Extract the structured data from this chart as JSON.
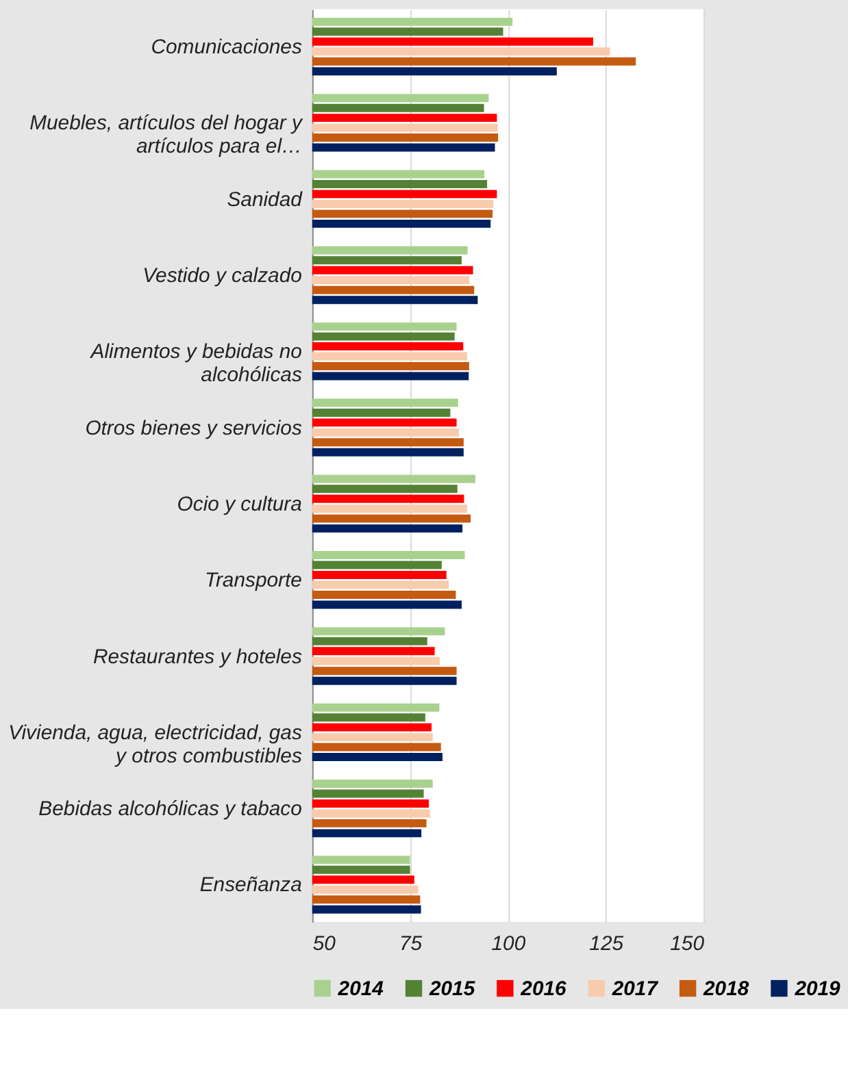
{
  "chart_data": {
    "type": "bar",
    "orientation": "horizontal",
    "categories": [
      "Comunicaciones",
      "Muebles, artículos del hogar y artículos para el…",
      "Sanidad",
      "Vestido y calzado",
      "Alimentos y bebidas no alcohólicas",
      "Otros bienes y servicios",
      "Ocio y cultura",
      "Transporte",
      "Restaurantes y hoteles",
      "Vivienda, agua, electricidad, gas y otros combustibles",
      "Bebidas alcohólicas y tabaco",
      "Enseñanza"
    ],
    "series": [
      {
        "name": "2014",
        "color": "#a9d18e",
        "values": [
          101.2,
          95.1,
          94.0,
          89.7,
          86.9,
          87.3,
          91.7,
          89.0,
          83.9,
          82.5,
          80.8,
          75.0
        ]
      },
      {
        "name": "2015",
        "color": "#548235",
        "values": [
          98.8,
          93.9,
          94.7,
          88.2,
          86.4,
          85.3,
          87.1,
          83.1,
          79.4,
          78.9,
          78.5,
          75.0
        ]
      },
      {
        "name": "2016",
        "color": "#ff0000",
        "values": [
          121.8,
          97.2,
          97.2,
          91.1,
          88.6,
          86.9,
          88.8,
          84.3,
          81.3,
          80.5,
          79.8,
          76.1
        ]
      },
      {
        "name": "2017",
        "color": "#f8cbad",
        "values": [
          126.1,
          97.4,
          96.3,
          90.2,
          89.6,
          87.5,
          89.6,
          84.9,
          82.6,
          80.8,
          80.1,
          77.1
        ]
      },
      {
        "name": "2018",
        "color": "#c55a11",
        "values": [
          132.7,
          97.5,
          96.1,
          91.4,
          90.1,
          88.7,
          90.5,
          86.7,
          86.9,
          82.9,
          79.2,
          77.6
        ]
      },
      {
        "name": "2019",
        "color": "#002060",
        "values": [
          112.5,
          96.7,
          95.6,
          92.3,
          90.0,
          88.7,
          88.4,
          88.2,
          86.9,
          83.3,
          77.9,
          77.8
        ]
      }
    ],
    "xlim": [
      50,
      150
    ],
    "xticks": [
      50,
      75,
      100,
      125,
      150
    ],
    "grid": "x",
    "legend": "bottom"
  }
}
